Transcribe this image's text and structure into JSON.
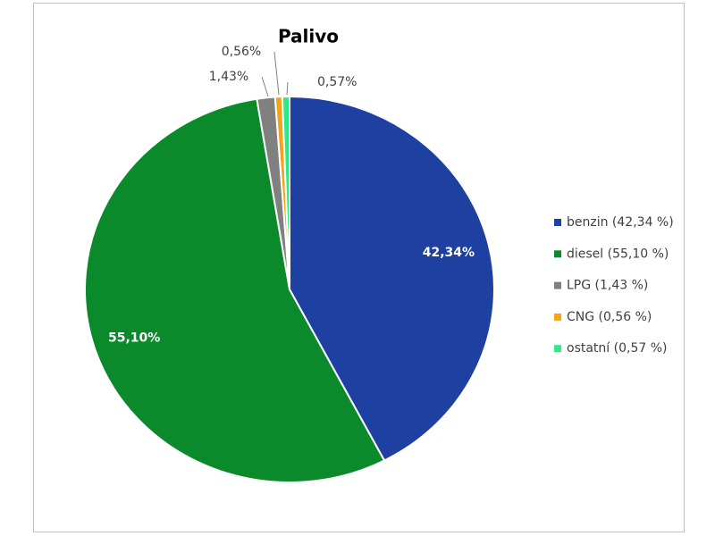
{
  "chart_data": {
    "type": "pie",
    "title": "Palivo",
    "categories": [
      "benzin (42,34 %)",
      "diesel (55,10 %)",
      "LPG (1,43 %)",
      "CNG (0,56 %)",
      "ostatní (0,57 %)"
    ],
    "values": [
      42.34,
      55.1,
      1.43,
      0.56,
      0.57
    ],
    "value_labels": [
      "42,34%",
      "55,10%",
      "1,43%",
      "0,56%",
      "0,57%"
    ],
    "colors": [
      "#1e40a0",
      "#0a8a2a",
      "#808080",
      "#f4a21a",
      "#2ee88a"
    ],
    "legend": "right"
  }
}
